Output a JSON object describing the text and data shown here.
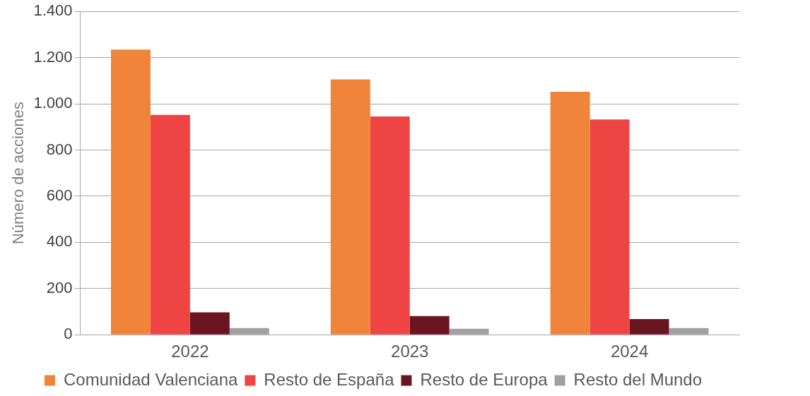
{
  "chart_data": {
    "type": "bar",
    "ylabel": "Número de acciones",
    "categories": [
      "2022",
      "2023",
      "2024"
    ],
    "series": [
      {
        "name": "Comunidad Valenciana",
        "color": "#f0843a",
        "values": [
          1235,
          1106,
          1052
        ]
      },
      {
        "name": "Resto de España",
        "color": "#ee4443",
        "values": [
          952,
          945,
          932
        ]
      },
      {
        "name": "Resto de Europa",
        "color": "#6b1520",
        "values": [
          97,
          81,
          68
        ]
      },
      {
        "name": "Resto del Mundo",
        "color": "#a0a0a0",
        "values": [
          29,
          26,
          29
        ]
      }
    ],
    "ylim": [
      0,
      1400
    ],
    "yticks": [
      0,
      200,
      400,
      600,
      800,
      {
        "value": 1000,
        "label": "1.000"
      },
      {
        "value": 1200,
        "label": "1.200"
      },
      {
        "value": 1400,
        "label": "1.400"
      }
    ],
    "grid": "y",
    "legend": "bottom"
  }
}
